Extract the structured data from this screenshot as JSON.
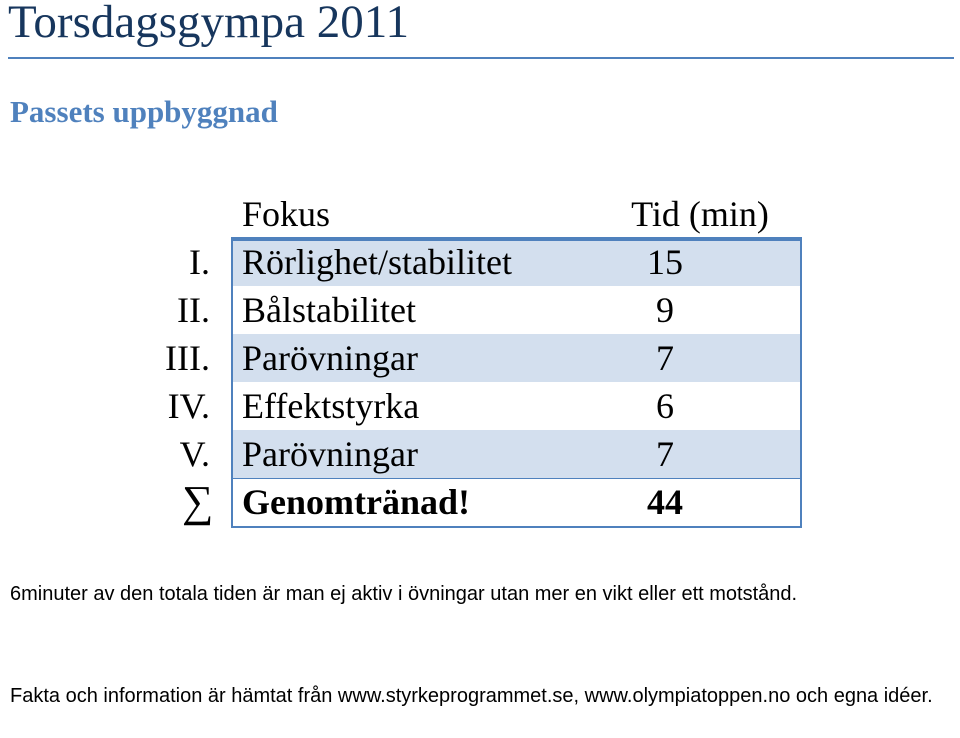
{
  "title": "Torsdagsgympa 2011",
  "subtitle": "Passets uppbyggnad",
  "table": {
    "header": {
      "fokus": "Fokus",
      "tid": "Tid (min)"
    },
    "rows": [
      {
        "numeral": "I.",
        "fokus": "Rörlighet/stabilitet",
        "tid": "15"
      },
      {
        "numeral": "II.",
        "fokus": "Bålstabilitet",
        "tid": "9"
      },
      {
        "numeral": "III.",
        "fokus": "Parövningar",
        "tid": "7"
      },
      {
        "numeral": "IV.",
        "fokus": "Effektstyrka",
        "tid": "6"
      },
      {
        "numeral": "V.",
        "fokus": "Parövningar",
        "tid": "7"
      }
    ],
    "total": {
      "symbol": "∑",
      "fokus": "Genomtränad!",
      "tid": "44"
    }
  },
  "note": "6minuter av den totala tiden är man ej aktiv i övningar utan mer en vikt eller ett motstånd.",
  "source": "Fakta och information är hämtat från www.styrkeprogrammet.se, www.olympiatoppen.no och egna idéer.",
  "colors": {
    "title": "#17365d",
    "accent": "#4f81bd",
    "row_shade": "#d3dfee"
  }
}
